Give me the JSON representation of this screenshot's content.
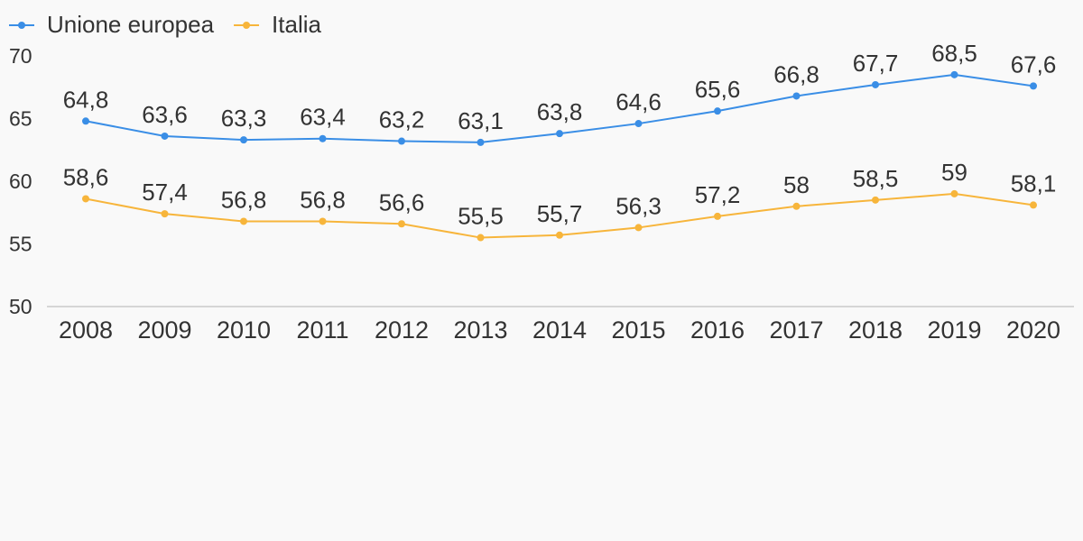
{
  "chart_data": {
    "type": "line",
    "categories": [
      "2008",
      "2009",
      "2010",
      "2011",
      "2012",
      "2013",
      "2014",
      "2015",
      "2016",
      "2017",
      "2018",
      "2019",
      "2020"
    ],
    "series": [
      {
        "name": "Unione europea",
        "color": "#3a8ee6",
        "values": [
          64.8,
          63.6,
          63.3,
          63.4,
          63.2,
          63.1,
          63.8,
          64.6,
          65.6,
          66.8,
          67.7,
          68.5,
          67.6
        ],
        "labels": [
          "64,8",
          "63,6",
          "63,3",
          "63,4",
          "63,2",
          "63,1",
          "63,8",
          "64,6",
          "65,6",
          "66,8",
          "67,7",
          "68,5",
          "67,6"
        ]
      },
      {
        "name": "Italia",
        "color": "#f7b53b",
        "values": [
          58.6,
          57.4,
          56.8,
          56.8,
          56.6,
          55.5,
          55.7,
          56.3,
          57.2,
          58.0,
          58.5,
          59.0,
          58.1
        ],
        "labels": [
          "58,6",
          "57,4",
          "56,8",
          "56,8",
          "56,6",
          "55,5",
          "55,7",
          "56,3",
          "57,2",
          "58",
          "58,5",
          "59",
          "58,1"
        ]
      }
    ],
    "ylim": [
      50,
      70
    ],
    "yticks": [
      "50",
      "55",
      "60",
      "65",
      "70"
    ],
    "legend_position": "top-left",
    "grid": false
  }
}
